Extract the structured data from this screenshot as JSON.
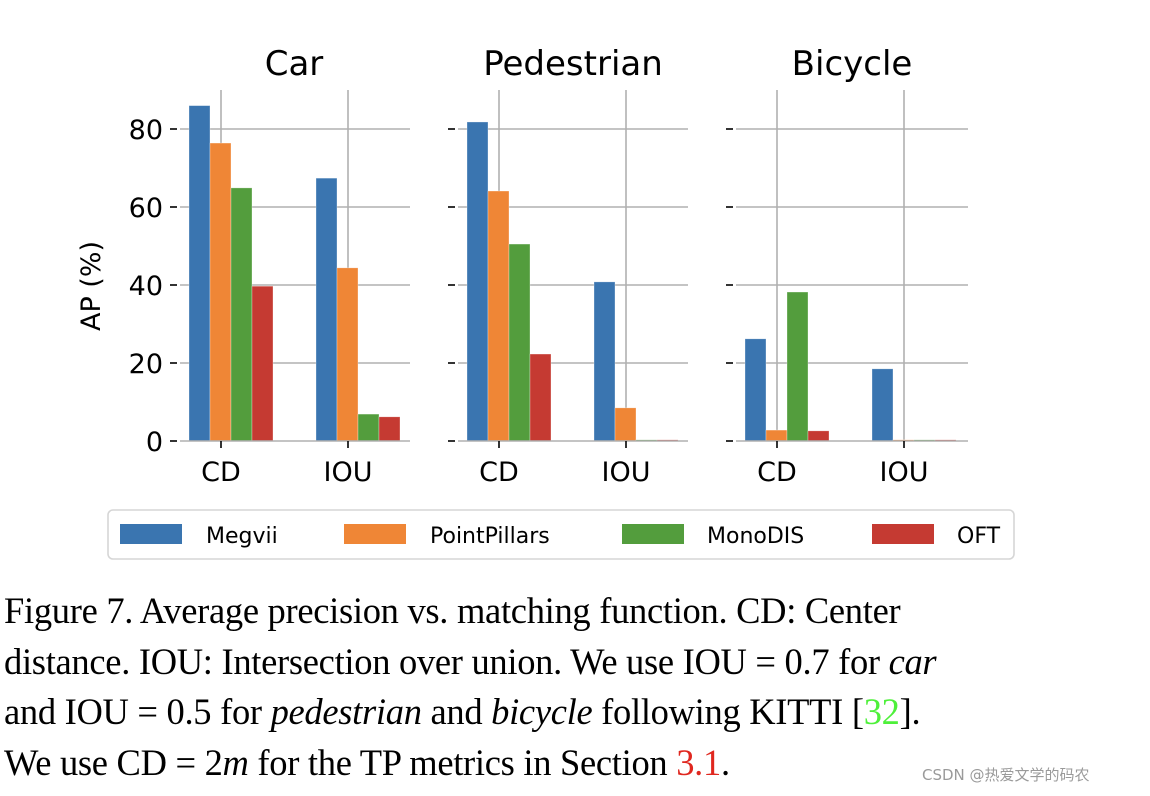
{
  "chart_data": [
    {
      "type": "bar",
      "title": "Car",
      "categories": [
        "CD",
        "IOU"
      ],
      "ylabel": "AP (%)",
      "xlabel": "",
      "ylim": [
        0,
        90
      ],
      "yticks": [
        0,
        20,
        40,
        60,
        80
      ],
      "grid": true,
      "series": [
        {
          "name": "Megvii",
          "values": [
            86.0,
            67.4
          ]
        },
        {
          "name": "PointPillars",
          "values": [
            76.4,
            44.4
          ]
        },
        {
          "name": "MonoDIS",
          "values": [
            64.9,
            6.9
          ]
        },
        {
          "name": "OFT",
          "values": [
            39.7,
            6.2
          ]
        }
      ]
    },
    {
      "type": "bar",
      "title": "Pedestrian",
      "categories": [
        "CD",
        "IOU"
      ],
      "ylabel": "",
      "xlabel": "",
      "ylim": [
        0,
        90
      ],
      "yticks": [
        0,
        20,
        40,
        60,
        80
      ],
      "grid": true,
      "series": [
        {
          "name": "Megvii",
          "values": [
            81.8,
            40.8
          ]
        },
        {
          "name": "PointPillars",
          "values": [
            64.1,
            8.5
          ]
        },
        {
          "name": "MonoDIS",
          "values": [
            50.5,
            0.3
          ]
        },
        {
          "name": "OFT",
          "values": [
            22.3,
            0.3
          ]
        }
      ]
    },
    {
      "type": "bar",
      "title": "Bicycle",
      "categories": [
        "CD",
        "IOU"
      ],
      "ylabel": "",
      "xlabel": "",
      "ylim": [
        0,
        90
      ],
      "yticks": [
        0,
        20,
        40,
        60,
        80
      ],
      "grid": true,
      "series": [
        {
          "name": "Megvii",
          "values": [
            26.2,
            18.5
          ]
        },
        {
          "name": "PointPillars",
          "values": [
            2.8,
            0.3
          ]
        },
        {
          "name": "MonoDIS",
          "values": [
            38.2,
            0.3
          ]
        },
        {
          "name": "OFT",
          "values": [
            2.6,
            0.3
          ]
        }
      ]
    }
  ],
  "legend": {
    "placement": "bottom",
    "entries": [
      {
        "label": "Megvii",
        "color": "#3a75b0"
      },
      {
        "label": "PointPillars",
        "color": "#ef8636"
      },
      {
        "label": "MonoDIS",
        "color": "#539d3d"
      },
      {
        "label": "OFT",
        "color": "#c53a32"
      }
    ]
  },
  "caption": {
    "line1": "Figure 7.   Average precision vs.  matching function.  CD: Center",
    "line2_a": "distance. IOU: Intersection over union. We use IOU = 0.7 for ",
    "line2_b": "car",
    "line3_a": "and IOU = 0.5 for ",
    "line3_b": "pedestrian",
    "line3_c": " and ",
    "line3_d": "bicycle",
    "line3_e": " following KITTI [",
    "line3_ref": "32",
    "line3_f": "].",
    "line4_a": "We use CD = 2",
    "line4_m": "m",
    "line4_b": " for the TP metrics in Section ",
    "line4_ref": "3.1",
    "line4_c": "."
  },
  "watermark": "CSDN @热爱文学的码农"
}
